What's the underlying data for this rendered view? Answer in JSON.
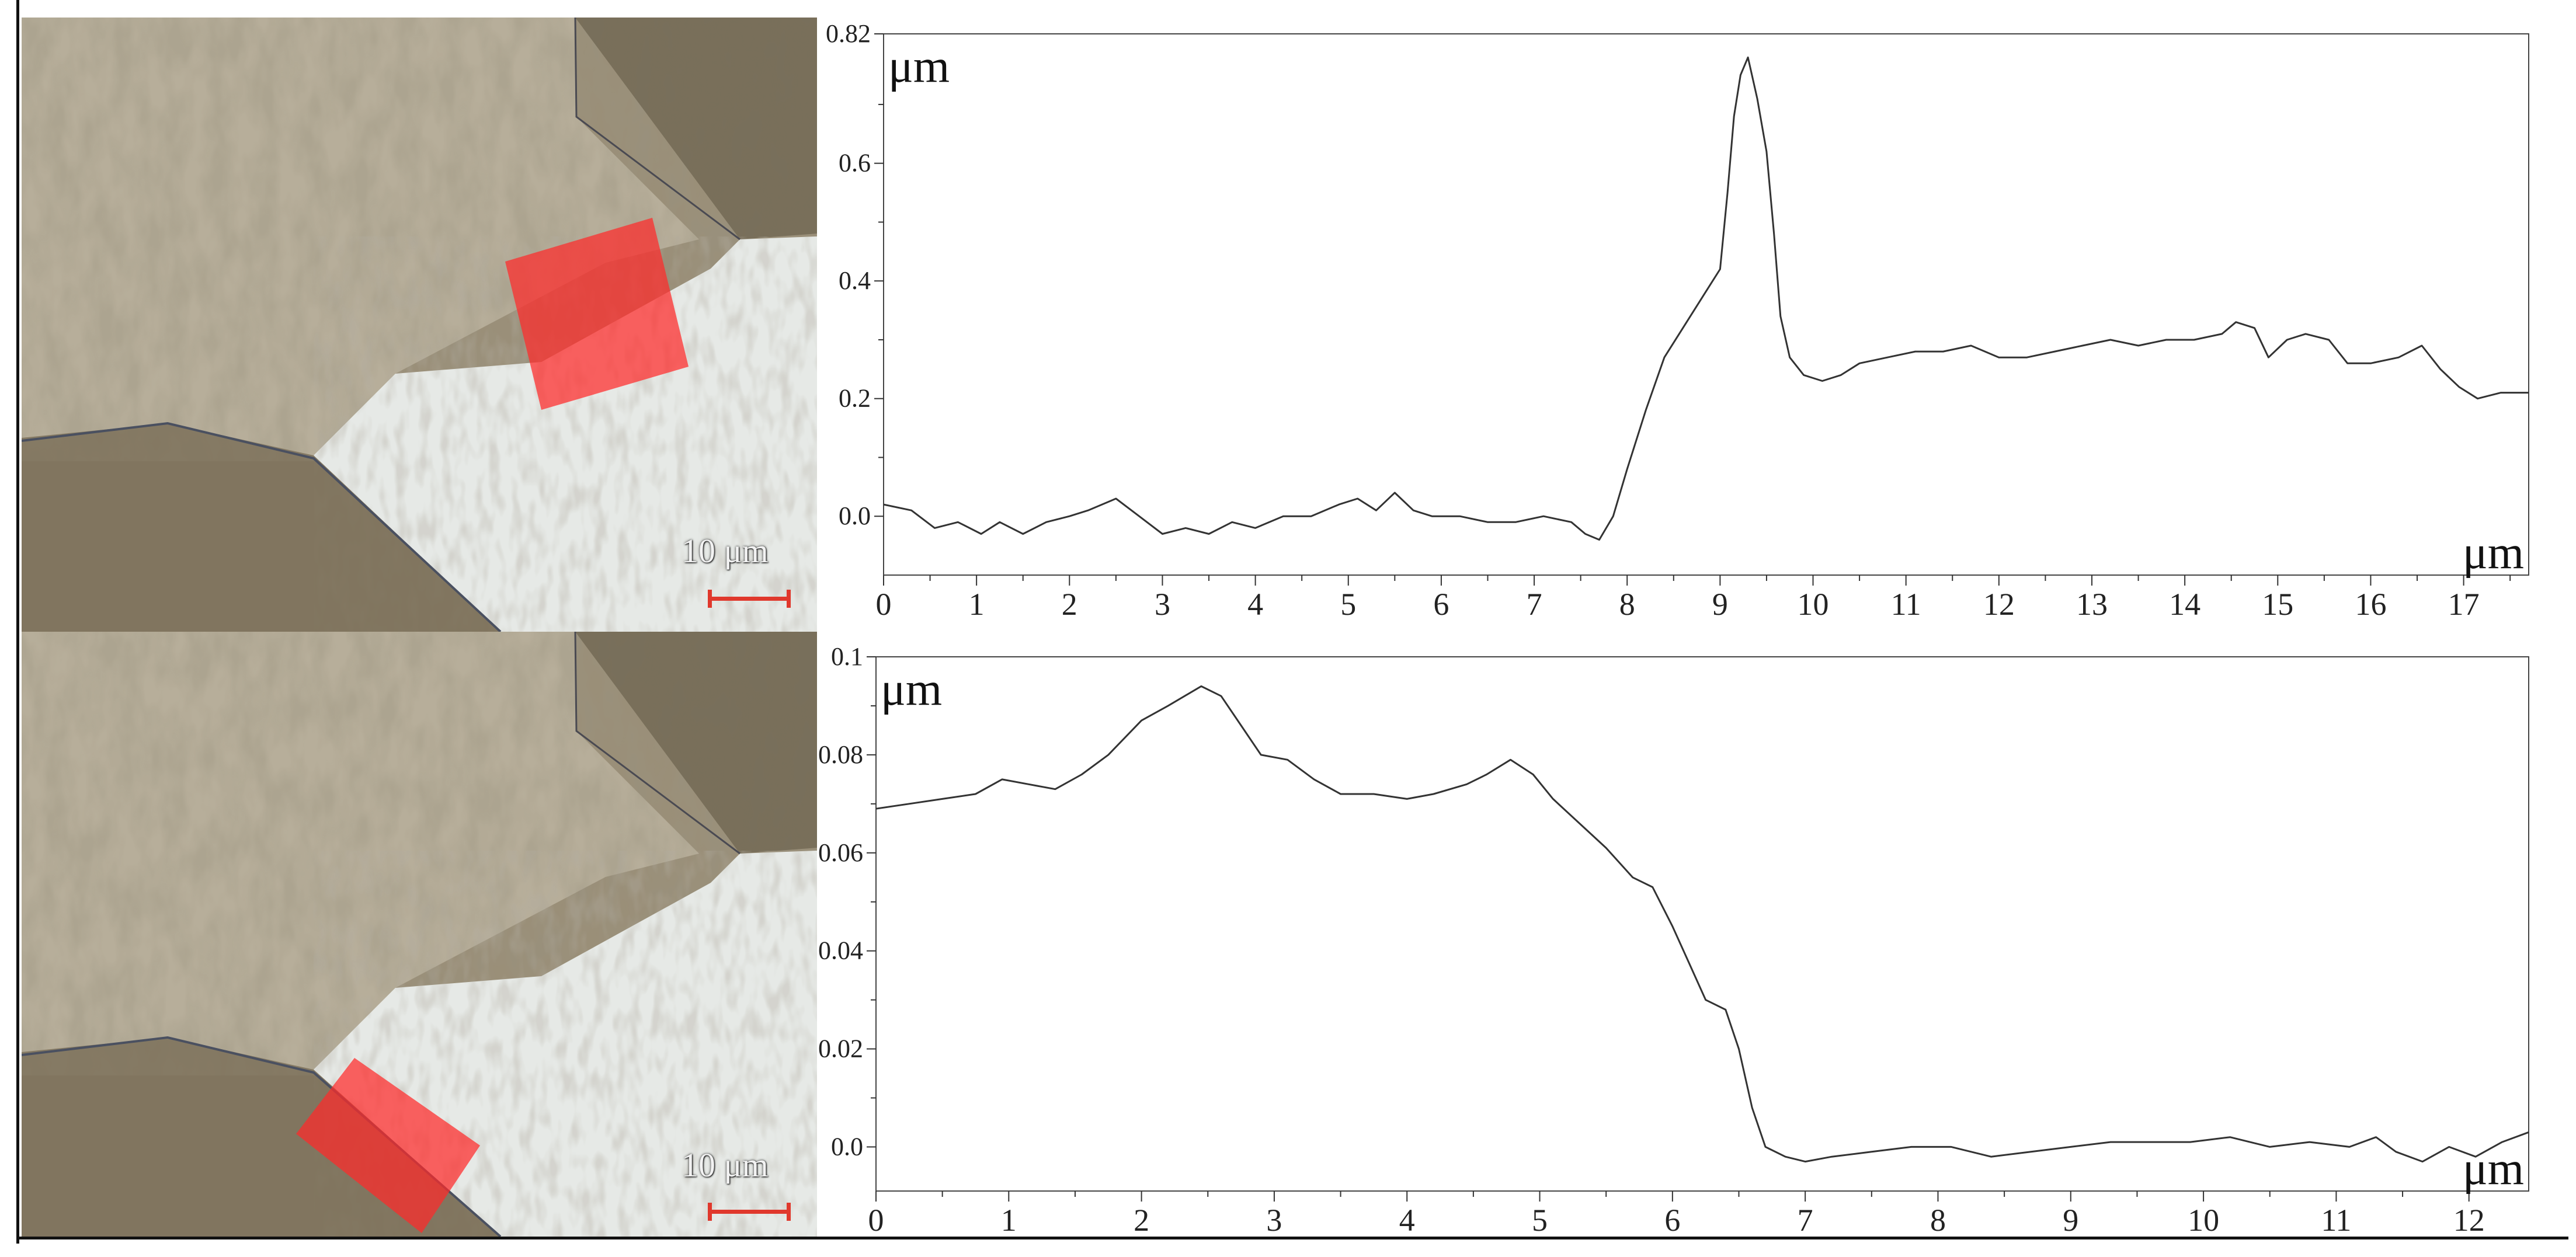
{
  "panels": [
    {
      "scale_label": "10 μm"
    },
    {
      "scale_label": "10 μm"
    }
  ],
  "colors": {
    "highlight": "#ff2a2a",
    "line": "#333333",
    "bar": "#e0382c"
  },
  "chart_data": [
    {
      "type": "line",
      "ylabel": "μm",
      "xlabel": "μm",
      "xlim": [
        0,
        17.7
      ],
      "ylim": [
        -0.1,
        0.82
      ],
      "yticks": [
        {
          "v": 0.0,
          "label": "0.0"
        },
        {
          "v": 0.2,
          "label": "0.2"
        },
        {
          "v": 0.4,
          "label": "0.4"
        },
        {
          "v": 0.6,
          "label": "0.6"
        },
        {
          "v": 0.82,
          "label": "0.82"
        }
      ],
      "xticks": [
        {
          "v": 0,
          "label": "0"
        },
        {
          "v": 1,
          "label": "1"
        },
        {
          "v": 2,
          "label": "2"
        },
        {
          "v": 3,
          "label": "3"
        },
        {
          "v": 4,
          "label": "4"
        },
        {
          "v": 5,
          "label": "5"
        },
        {
          "v": 6,
          "label": "6"
        },
        {
          "v": 7,
          "label": "7"
        },
        {
          "v": 8,
          "label": "8"
        },
        {
          "v": 9,
          "label": "9"
        },
        {
          "v": 10,
          "label": "10"
        },
        {
          "v": 11,
          "label": "11"
        },
        {
          "v": 12,
          "label": "12"
        },
        {
          "v": 13,
          "label": "13"
        },
        {
          "v": 14,
          "label": "14"
        },
        {
          "v": 15,
          "label": "15"
        },
        {
          "v": 16,
          "label": "16"
        },
        {
          "v": 17,
          "label": "17"
        }
      ],
      "points": [
        [
          0,
          0.02
        ],
        [
          0.3,
          0.01
        ],
        [
          0.55,
          -0.02
        ],
        [
          0.8,
          -0.01
        ],
        [
          1.05,
          -0.03
        ],
        [
          1.25,
          -0.01
        ],
        [
          1.5,
          -0.03
        ],
        [
          1.75,
          -0.01
        ],
        [
          2.0,
          0.0
        ],
        [
          2.2,
          0.01
        ],
        [
          2.5,
          0.03
        ],
        [
          2.75,
          0.0
        ],
        [
          3.0,
          -0.03
        ],
        [
          3.25,
          -0.02
        ],
        [
          3.5,
          -0.03
        ],
        [
          3.75,
          -0.01
        ],
        [
          4.0,
          -0.02
        ],
        [
          4.3,
          0.0
        ],
        [
          4.6,
          0.0
        ],
        [
          4.9,
          0.02
        ],
        [
          5.1,
          0.03
        ],
        [
          5.3,
          0.01
        ],
        [
          5.5,
          0.04
        ],
        [
          5.7,
          0.01
        ],
        [
          5.9,
          0.0
        ],
        [
          6.2,
          0.0
        ],
        [
          6.5,
          -0.01
        ],
        [
          6.8,
          -0.01
        ],
        [
          7.1,
          0.0
        ],
        [
          7.4,
          -0.01
        ],
        [
          7.55,
          -0.03
        ],
        [
          7.7,
          -0.04
        ],
        [
          7.85,
          0.0
        ],
        [
          8.0,
          0.08
        ],
        [
          8.2,
          0.18
        ],
        [
          8.4,
          0.27
        ],
        [
          8.6,
          0.32
        ],
        [
          8.8,
          0.37
        ],
        [
          9.0,
          0.42
        ],
        [
          9.08,
          0.55
        ],
        [
          9.15,
          0.68
        ],
        [
          9.22,
          0.75
        ],
        [
          9.3,
          0.78
        ],
        [
          9.4,
          0.71
        ],
        [
          9.5,
          0.62
        ],
        [
          9.58,
          0.48
        ],
        [
          9.65,
          0.34
        ],
        [
          9.75,
          0.27
        ],
        [
          9.9,
          0.24
        ],
        [
          10.1,
          0.23
        ],
        [
          10.3,
          0.24
        ],
        [
          10.5,
          0.26
        ],
        [
          10.8,
          0.27
        ],
        [
          11.1,
          0.28
        ],
        [
          11.4,
          0.28
        ],
        [
          11.7,
          0.29
        ],
        [
          12.0,
          0.27
        ],
        [
          12.3,
          0.27
        ],
        [
          12.6,
          0.28
        ],
        [
          12.9,
          0.29
        ],
        [
          13.2,
          0.3
        ],
        [
          13.5,
          0.29
        ],
        [
          13.8,
          0.3
        ],
        [
          14.1,
          0.3
        ],
        [
          14.4,
          0.31
        ],
        [
          14.55,
          0.33
        ],
        [
          14.75,
          0.32
        ],
        [
          14.9,
          0.27
        ],
        [
          15.1,
          0.3
        ],
        [
          15.3,
          0.31
        ],
        [
          15.55,
          0.3
        ],
        [
          15.75,
          0.26
        ],
        [
          16.0,
          0.26
        ],
        [
          16.3,
          0.27
        ],
        [
          16.55,
          0.29
        ],
        [
          16.75,
          0.25
        ],
        [
          16.95,
          0.22
        ],
        [
          17.15,
          0.2
        ],
        [
          17.4,
          0.21
        ],
        [
          17.7,
          0.21
        ]
      ]
    },
    {
      "type": "line",
      "ylabel": "μm",
      "xlabel": "μm",
      "xlim": [
        0,
        12.45
      ],
      "ylim": [
        -0.009,
        0.1
      ],
      "yticks": [
        {
          "v": 0.0,
          "label": "0.0"
        },
        {
          "v": 0.02,
          "label": "0.02"
        },
        {
          "v": 0.04,
          "label": "0.04"
        },
        {
          "v": 0.06,
          "label": "0.06"
        },
        {
          "v": 0.08,
          "label": "0.08"
        },
        {
          "v": 0.1,
          "label": "0.1"
        }
      ],
      "xticks": [
        {
          "v": 0,
          "label": "0"
        },
        {
          "v": 1,
          "label": "1"
        },
        {
          "v": 2,
          "label": "2"
        },
        {
          "v": 3,
          "label": "3"
        },
        {
          "v": 4,
          "label": "4"
        },
        {
          "v": 5,
          "label": "5"
        },
        {
          "v": 6,
          "label": "6"
        },
        {
          "v": 7,
          "label": "7"
        },
        {
          "v": 8,
          "label": "8"
        },
        {
          "v": 9,
          "label": "9"
        },
        {
          "v": 10,
          "label": "10"
        },
        {
          "v": 11,
          "label": "11"
        },
        {
          "v": 12,
          "label": "12"
        }
      ],
      "points": [
        [
          0,
          0.069
        ],
        [
          0.25,
          0.07
        ],
        [
          0.5,
          0.071
        ],
        [
          0.75,
          0.072
        ],
        [
          0.95,
          0.075
        ],
        [
          1.15,
          0.074
        ],
        [
          1.35,
          0.073
        ],
        [
          1.55,
          0.076
        ],
        [
          1.75,
          0.08
        ],
        [
          2.0,
          0.087
        ],
        [
          2.2,
          0.09
        ],
        [
          2.45,
          0.094
        ],
        [
          2.6,
          0.092
        ],
        [
          2.75,
          0.086
        ],
        [
          2.9,
          0.08
        ],
        [
          3.1,
          0.079
        ],
        [
          3.3,
          0.075
        ],
        [
          3.5,
          0.072
        ],
        [
          3.75,
          0.072
        ],
        [
          4.0,
          0.071
        ],
        [
          4.2,
          0.072
        ],
        [
          4.45,
          0.074
        ],
        [
          4.6,
          0.076
        ],
        [
          4.78,
          0.079
        ],
        [
          4.95,
          0.076
        ],
        [
          5.1,
          0.071
        ],
        [
          5.3,
          0.066
        ],
        [
          5.5,
          0.061
        ],
        [
          5.7,
          0.055
        ],
        [
          5.85,
          0.053
        ],
        [
          6.0,
          0.045
        ],
        [
          6.15,
          0.036
        ],
        [
          6.25,
          0.03
        ],
        [
          6.4,
          0.028
        ],
        [
          6.5,
          0.02
        ],
        [
          6.6,
          0.008
        ],
        [
          6.7,
          0.0
        ],
        [
          6.85,
          -0.002
        ],
        [
          7.0,
          -0.003
        ],
        [
          7.2,
          -0.002
        ],
        [
          7.5,
          -0.001
        ],
        [
          7.8,
          0.0
        ],
        [
          8.1,
          0.0
        ],
        [
          8.4,
          -0.002
        ],
        [
          8.7,
          -0.001
        ],
        [
          9.0,
          0.0
        ],
        [
          9.3,
          0.001
        ],
        [
          9.6,
          0.001
        ],
        [
          9.9,
          0.001
        ],
        [
          10.2,
          0.002
        ],
        [
          10.5,
          0.0
        ],
        [
          10.8,
          0.001
        ],
        [
          11.1,
          0.0
        ],
        [
          11.3,
          0.002
        ],
        [
          11.45,
          -0.001
        ],
        [
          11.65,
          -0.003
        ],
        [
          11.85,
          0.0
        ],
        [
          12.05,
          -0.002
        ],
        [
          12.25,
          0.001
        ],
        [
          12.45,
          0.003
        ]
      ]
    }
  ]
}
